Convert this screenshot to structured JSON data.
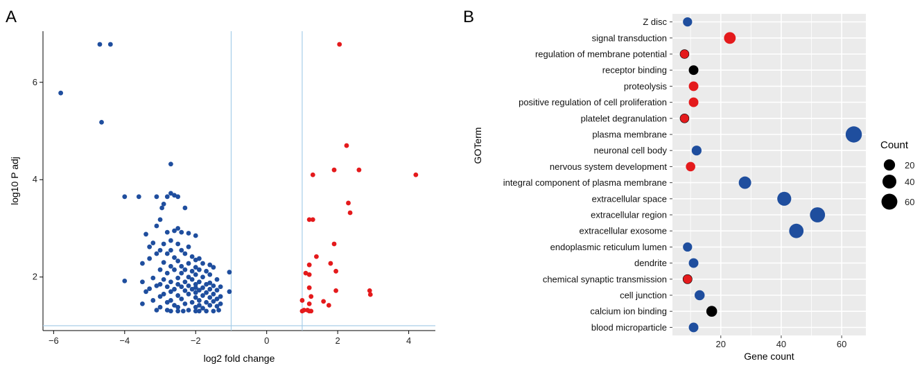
{
  "panels": {
    "a_label": "A",
    "b_label": "B"
  },
  "colors": {
    "down": "#1f4e9e",
    "up": "#e41a1c",
    "neutral": "#000000",
    "refline": "#a6cde8",
    "panel_bg": "#ebebeb"
  },
  "chart_data": [
    {
      "type": "scatter",
      "xlabel": "log2 fold change",
      "ylabel": "log10 P adj",
      "xlim": [
        -6.3,
        4.75
      ],
      "ylim": [
        0.9,
        7.05
      ],
      "xticks": [
        -6,
        -4,
        -2,
        0,
        2,
        4
      ],
      "xtick_labels": [
        "−6",
        "−4",
        "−2",
        "0",
        "2",
        "4"
      ],
      "yticks": [
        2,
        4,
        6
      ],
      "ytick_labels": [
        "2",
        "4",
        "6"
      ],
      "reference_lines": {
        "vertical": [
          -1,
          1
        ],
        "horizontal": [
          1
        ]
      },
      "series": [
        {
          "group": "down",
          "points": [
            [
              -4.7,
              6.78
            ],
            [
              -4.4,
              6.78
            ],
            [
              -5.8,
              5.78
            ],
            [
              -4.65,
              5.18
            ],
            [
              -2.7,
              4.32
            ],
            [
              -4.0,
              3.65
            ],
            [
              -3.6,
              3.65
            ],
            [
              -3.1,
              3.65
            ],
            [
              -2.7,
              3.72
            ],
            [
              -2.6,
              3.68
            ],
            [
              -2.5,
              3.65
            ],
            [
              -2.8,
              3.65
            ],
            [
              -2.9,
              3.5
            ],
            [
              -2.3,
              3.42
            ],
            [
              -2.95,
              3.42
            ],
            [
              -3.0,
              3.18
            ],
            [
              -3.1,
              3.05
            ],
            [
              -2.5,
              3.0
            ],
            [
              -2.6,
              2.95
            ],
            [
              -2.8,
              2.92
            ],
            [
              -2.4,
              2.92
            ],
            [
              -2.2,
              2.9
            ],
            [
              -3.4,
              2.88
            ],
            [
              -2.0,
              2.85
            ],
            [
              -2.7,
              2.75
            ],
            [
              -3.2,
              2.7
            ],
            [
              -2.9,
              2.68
            ],
            [
              -2.5,
              2.68
            ],
            [
              -3.3,
              2.62
            ],
            [
              -2.2,
              2.62
            ],
            [
              -3.0,
              2.55
            ],
            [
              -2.7,
              2.55
            ],
            [
              -2.4,
              2.55
            ],
            [
              -3.1,
              2.48
            ],
            [
              -2.8,
              2.48
            ],
            [
              -2.3,
              2.48
            ],
            [
              -2.1,
              2.42
            ],
            [
              -2.6,
              2.4
            ],
            [
              -3.3,
              2.38
            ],
            [
              -1.9,
              2.38
            ],
            [
              -2.0,
              2.35
            ],
            [
              -2.5,
              2.33
            ],
            [
              -2.9,
              2.3
            ],
            [
              -3.5,
              2.28
            ],
            [
              -2.2,
              2.28
            ],
            [
              -1.8,
              2.28
            ],
            [
              -1.6,
              2.25
            ],
            [
              -2.4,
              2.22
            ],
            [
              -2.7,
              2.22
            ],
            [
              -2.0,
              2.2
            ],
            [
              -1.5,
              2.2
            ],
            [
              -3.0,
              2.15
            ],
            [
              -2.6,
              2.15
            ],
            [
              -2.3,
              2.15
            ],
            [
              -1.9,
              2.15
            ],
            [
              -2.1,
              2.12
            ],
            [
              -1.7,
              2.12
            ],
            [
              -1.05,
              2.1
            ],
            [
              -2.8,
              2.08
            ],
            [
              -2.4,
              2.08
            ],
            [
              -2.0,
              2.05
            ],
            [
              -1.6,
              2.05
            ],
            [
              -2.2,
              2.0
            ],
            [
              -1.8,
              2.0
            ],
            [
              -3.2,
              1.98
            ],
            [
              -2.5,
              1.98
            ],
            [
              -2.9,
              1.95
            ],
            [
              -2.1,
              1.95
            ],
            [
              -1.4,
              1.95
            ],
            [
              -4.0,
              1.92
            ],
            [
              -3.5,
              1.9
            ],
            [
              -2.7,
              1.9
            ],
            [
              -2.3,
              1.9
            ],
            [
              -1.9,
              1.9
            ],
            [
              -1.6,
              1.88
            ],
            [
              -2.0,
              1.85
            ],
            [
              -3.0,
              1.85
            ],
            [
              -2.5,
              1.85
            ],
            [
              -1.7,
              1.85
            ],
            [
              -2.2,
              1.82
            ],
            [
              -3.1,
              1.82
            ],
            [
              -1.5,
              1.82
            ],
            [
              -1.3,
              1.8
            ],
            [
              -2.8,
              1.8
            ],
            [
              -2.4,
              1.8
            ],
            [
              -2.0,
              1.78
            ],
            [
              -1.8,
              1.78
            ],
            [
              -3.3,
              1.76
            ],
            [
              -1.6,
              1.75
            ],
            [
              -2.1,
              1.75
            ],
            [
              -2.6,
              1.75
            ],
            [
              -1.4,
              1.73
            ],
            [
              -1.9,
              1.73
            ],
            [
              -2.3,
              1.72
            ],
            [
              -1.05,
              1.7
            ],
            [
              -2.7,
              1.7
            ],
            [
              -3.4,
              1.7
            ],
            [
              -2.0,
              1.68
            ],
            [
              -1.7,
              1.68
            ],
            [
              -1.5,
              1.65
            ],
            [
              -2.2,
              1.65
            ],
            [
              -2.9,
              1.65
            ],
            [
              -2.5,
              1.62
            ],
            [
              -1.8,
              1.62
            ],
            [
              -1.3,
              1.6
            ],
            [
              -3.0,
              1.6
            ],
            [
              -2.0,
              1.58
            ],
            [
              -1.6,
              1.58
            ],
            [
              -2.4,
              1.55
            ],
            [
              -1.4,
              1.55
            ],
            [
              -3.2,
              1.52
            ],
            [
              -2.7,
              1.52
            ],
            [
              -1.9,
              1.52
            ],
            [
              -1.5,
              1.5
            ],
            [
              -2.1,
              1.48
            ],
            [
              -1.7,
              1.48
            ],
            [
              -2.8,
              1.48
            ],
            [
              -3.5,
              1.45
            ],
            [
              -1.3,
              1.45
            ],
            [
              -2.3,
              1.45
            ],
            [
              -1.6,
              1.42
            ],
            [
              -2.6,
              1.42
            ],
            [
              -1.9,
              1.42
            ],
            [
              -1.4,
              1.4
            ],
            [
              -2.0,
              1.38
            ],
            [
              -3.0,
              1.38
            ],
            [
              -2.5,
              1.38
            ],
            [
              -1.8,
              1.36
            ],
            [
              -3.1,
              1.32
            ],
            [
              -2.8,
              1.32
            ],
            [
              -2.7,
              1.3
            ],
            [
              -2.2,
              1.32
            ],
            [
              -2.0,
              1.3
            ],
            [
              -1.7,
              1.3
            ],
            [
              -1.5,
              1.3
            ],
            [
              -1.35,
              1.32
            ],
            [
              -2.5,
              1.3
            ],
            [
              -1.9,
              1.3
            ],
            [
              -2.35,
              1.3
            ]
          ]
        },
        {
          "group": "up",
          "points": [
            [
              2.05,
              6.78
            ],
            [
              2.25,
              4.7
            ],
            [
              1.9,
              4.2
            ],
            [
              2.6,
              4.2
            ],
            [
              1.3,
              4.1
            ],
            [
              4.2,
              4.1
            ],
            [
              2.3,
              3.52
            ],
            [
              2.35,
              3.32
            ],
            [
              1.2,
              3.18
            ],
            [
              1.3,
              3.18
            ],
            [
              1.9,
              2.68
            ],
            [
              1.4,
              2.42
            ],
            [
              1.8,
              2.28
            ],
            [
              1.2,
              2.25
            ],
            [
              1.95,
              2.12
            ],
            [
              1.1,
              2.08
            ],
            [
              1.2,
              2.05
            ],
            [
              1.2,
              1.78
            ],
            [
              1.95,
              1.72
            ],
            [
              2.9,
              1.72
            ],
            [
              2.92,
              1.64
            ],
            [
              1.25,
              1.6
            ],
            [
              1.0,
              1.52
            ],
            [
              1.6,
              1.5
            ],
            [
              1.2,
              1.45
            ],
            [
              1.75,
              1.42
            ],
            [
              1.05,
              1.32
            ],
            [
              1.15,
              1.32
            ],
            [
              1.25,
              1.3
            ],
            [
              1.0,
              1.3
            ],
            [
              1.2,
              1.3
            ]
          ]
        }
      ]
    },
    {
      "type": "scatter",
      "xlabel": "Gene count",
      "ylabel": "GOTerm",
      "xlim": [
        4,
        68
      ],
      "xticks": [
        20,
        40,
        60
      ],
      "xtick_labels": [
        "20",
        "40",
        "60"
      ],
      "legend": {
        "title": "Count",
        "placement": "right",
        "sizes": [
          20,
          40,
          60
        ],
        "labels": [
          "20",
          "40",
          "60"
        ]
      },
      "terms": [
        {
          "label": "Z disc",
          "count": 9,
          "color": "down"
        },
        {
          "label": "signal transduction",
          "count": 23,
          "color": "up"
        },
        {
          "label": "regulation of membrane potential",
          "count": 8,
          "color": "up"
        },
        {
          "label": "receptor binding",
          "count": 11,
          "color": "neutral"
        },
        {
          "label": "proteolysis",
          "count": 11,
          "color": "up"
        },
        {
          "label": "positive regulation of cell proliferation",
          "count": 11,
          "color": "up"
        },
        {
          "label": "platelet degranulation",
          "count": 8,
          "color": "up"
        },
        {
          "label": "plasma membrane",
          "count": 64,
          "color": "down"
        },
        {
          "label": "neuronal cell body",
          "count": 12,
          "color": "down"
        },
        {
          "label": "nervous system development",
          "count": 10,
          "color": "up"
        },
        {
          "label": "integral component of plasma membrane",
          "count": 28,
          "color": "down"
        },
        {
          "label": "extracellular space",
          "count": 41,
          "color": "down"
        },
        {
          "label": "extracellular region",
          "count": 52,
          "color": "down"
        },
        {
          "label": "extracellular exosome",
          "count": 45,
          "color": "down"
        },
        {
          "label": "endoplasmic reticulum lumen",
          "count": 9,
          "color": "down"
        },
        {
          "label": "dendrite",
          "count": 11,
          "color": "down"
        },
        {
          "label": "chemical synaptic transmission",
          "count": 9,
          "color": "up"
        },
        {
          "label": "cell junction",
          "count": 13,
          "color": "down"
        },
        {
          "label": "calcium ion binding",
          "count": 17,
          "color": "neutral"
        },
        {
          "label": "blood microparticle",
          "count": 11,
          "color": "down"
        }
      ]
    }
  ]
}
